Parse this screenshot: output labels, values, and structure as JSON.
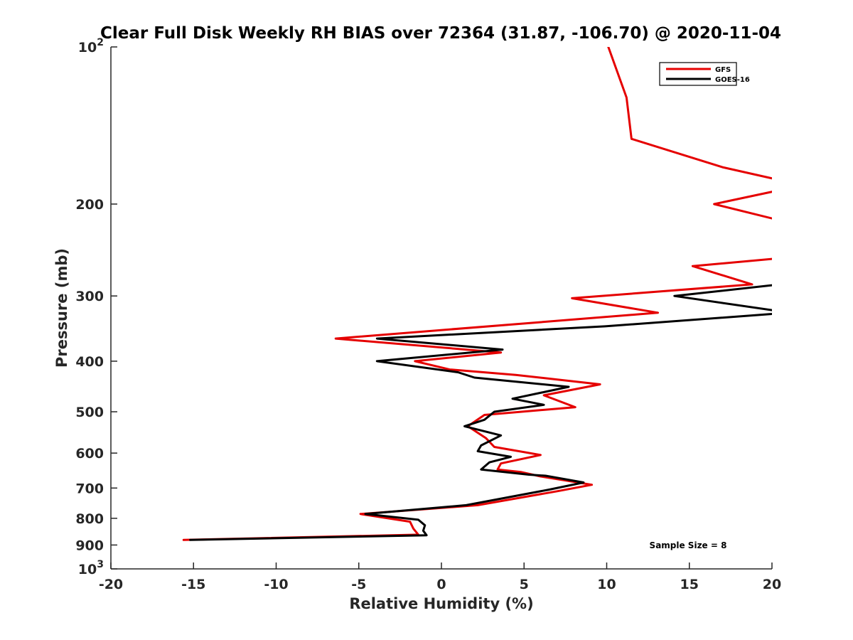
{
  "chart_data": {
    "type": "line",
    "title": "Clear Full Disk Weekly RH BIAS over 72364 (31.87, -106.70) @ 2020-11-04",
    "xlabel": "Relative Humidity (%)",
    "ylabel": "Pressure (mb)",
    "xlim": [
      -20,
      20
    ],
    "ylim": [
      1000,
      100
    ],
    "y_scale": "log",
    "x_ticks": [
      "-20",
      "-15",
      "-10",
      "-5",
      "0",
      "5",
      "10",
      "15",
      "20"
    ],
    "x_tick_values": [
      -20,
      -15,
      -10,
      -5,
      0,
      5,
      10,
      15,
      20
    ],
    "y_ticks": [
      {
        "value": 100,
        "label": "10",
        "sup": "2"
      },
      {
        "value": 200,
        "label": "200"
      },
      {
        "value": 300,
        "label": "300"
      },
      {
        "value": 400,
        "label": "400"
      },
      {
        "value": 500,
        "label": "500"
      },
      {
        "value": 600,
        "label": "600"
      },
      {
        "value": 700,
        "label": "700"
      },
      {
        "value": 800,
        "label": "800"
      },
      {
        "value": 900,
        "label": "900"
      },
      {
        "value": 1000,
        "label": "10",
        "sup": "3"
      }
    ],
    "legend_position": "top-right",
    "grid": false,
    "series": [
      {
        "name": "GFS",
        "color": "#e50000",
        "points": [
          [
            10.1,
            100
          ],
          [
            11.2,
            125
          ],
          [
            11.5,
            150
          ],
          [
            17.0,
            170
          ],
          [
            20.5,
            180
          ],
          [
            20.5,
            188
          ],
          [
            16.5,
            200
          ],
          [
            20.5,
            215
          ],
          [
            20.5,
            254
          ],
          [
            15.2,
            263
          ],
          [
            18.8,
            285
          ],
          [
            7.9,
            303
          ],
          [
            13.1,
            323
          ],
          [
            -6.4,
            362
          ],
          [
            3.6,
            385
          ],
          [
            -1.6,
            400
          ],
          [
            0.5,
            415
          ],
          [
            4.5,
            425
          ],
          [
            9.6,
            443
          ],
          [
            6.2,
            465
          ],
          [
            8.1,
            490
          ],
          [
            2.6,
            507
          ],
          [
            1.6,
            533
          ],
          [
            2.7,
            562
          ],
          [
            3.2,
            584
          ],
          [
            6.0,
            605
          ],
          [
            3.6,
            628
          ],
          [
            3.4,
            645
          ],
          [
            4.8,
            652
          ],
          [
            6.0,
            665
          ],
          [
            9.1,
            690
          ],
          [
            7.0,
            710
          ],
          [
            2.2,
            755
          ],
          [
            -4.9,
            785
          ],
          [
            -1.9,
            812
          ],
          [
            -1.7,
            837
          ],
          [
            -1.4,
            860
          ],
          [
            -15.6,
            880
          ]
        ]
      },
      {
        "name": "GOES-16",
        "color": "#000000",
        "points": [
          [
            20.5,
            285
          ],
          [
            14.1,
            300
          ],
          [
            20.5,
            321
          ],
          [
            20.5,
            324
          ],
          [
            9.9,
            343
          ],
          [
            -3.9,
            362
          ],
          [
            3.7,
            380
          ],
          [
            -3.9,
            400
          ],
          [
            1.0,
            420
          ],
          [
            2.0,
            430
          ],
          [
            7.7,
            448
          ],
          [
            4.3,
            472
          ],
          [
            6.2,
            485
          ],
          [
            3.2,
            500
          ],
          [
            2.6,
            518
          ],
          [
            1.4,
            533
          ],
          [
            3.6,
            555
          ],
          [
            2.4,
            580
          ],
          [
            2.2,
            595
          ],
          [
            4.2,
            610
          ],
          [
            2.9,
            625
          ],
          [
            2.4,
            645
          ],
          [
            5.3,
            660
          ],
          [
            6.3,
            663
          ],
          [
            8.6,
            683
          ],
          [
            6.5,
            705
          ],
          [
            1.5,
            755
          ],
          [
            -4.6,
            785
          ],
          [
            -1.4,
            805
          ],
          [
            -1.0,
            825
          ],
          [
            -1.1,
            845
          ],
          [
            -0.9,
            862
          ],
          [
            -15.2,
            880
          ]
        ]
      }
    ],
    "annotation": "Sample Size = 8"
  }
}
